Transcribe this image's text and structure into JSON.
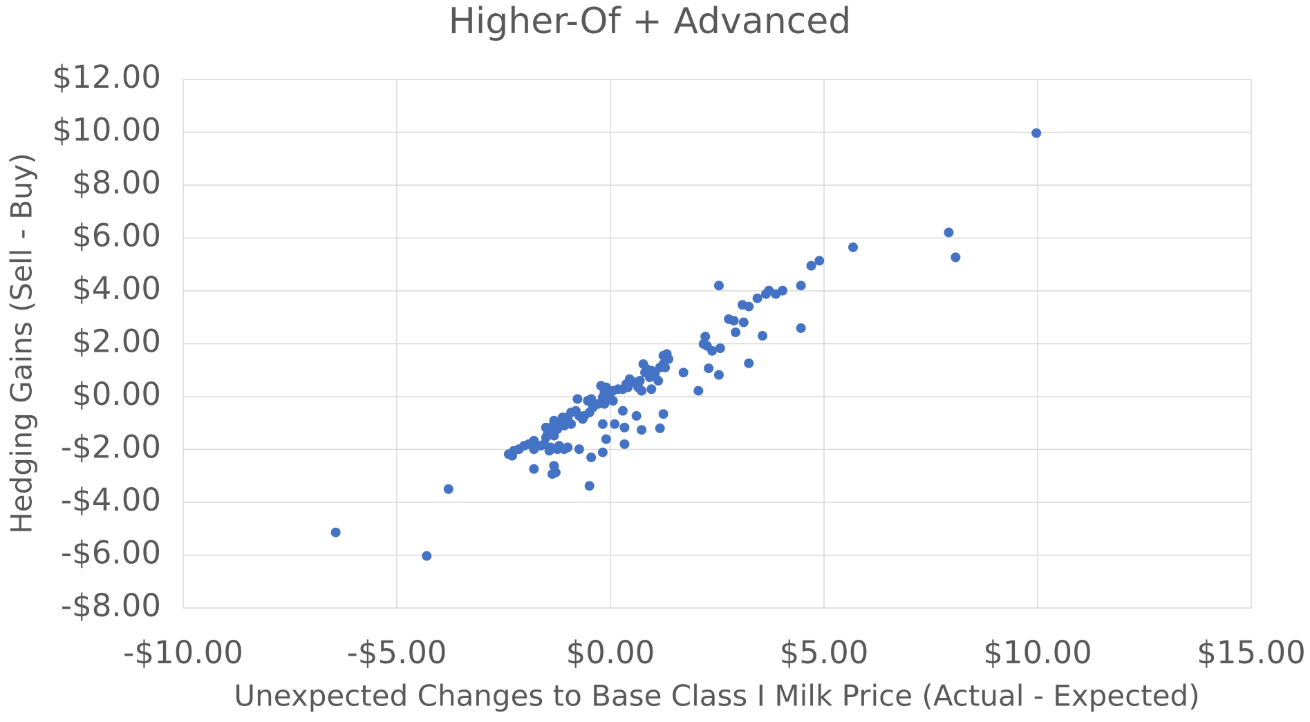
{
  "chart_data": {
    "type": "scatter",
    "title": "Higher-Of + Advanced",
    "x_label": "Unexpected Changes to Base Class I Milk Price (Actual - Expected)",
    "y_label": "Hedging Gains (Sell - Buy)",
    "color": "#4472c4",
    "grid": true,
    "xlim": [
      -10,
      15
    ],
    "ylim": [
      -8,
      12
    ],
    "xticks": [
      {
        "value": -10,
        "label": "-$10.00"
      },
      {
        "value": -5,
        "label": "-$5.00"
      },
      {
        "value": 0,
        "label": "$0.00"
      },
      {
        "value": 5,
        "label": "$5.00"
      },
      {
        "value": 10,
        "label": "$10.00"
      },
      {
        "value": 15,
        "label": "$15.00"
      }
    ],
    "yticks": [
      {
        "value": -8,
        "label": "-$8.00"
      },
      {
        "value": -6,
        "label": "-$6.00"
      },
      {
        "value": -4,
        "label": "-$4.00"
      },
      {
        "value": -2,
        "label": "-$2.00"
      },
      {
        "value": 0,
        "label": "$0.00"
      },
      {
        "value": 2,
        "label": "$2.00"
      },
      {
        "value": 4,
        "label": "$4.00"
      },
      {
        "value": 6,
        "label": "$6.00"
      },
      {
        "value": 8,
        "label": "$8.00"
      },
      {
        "value": 10,
        "label": "$10.00"
      },
      {
        "value": 12,
        "label": "$12.00"
      }
    ],
    "x": [
      9.97,
      7.92,
      8.08,
      5.68,
      4.89,
      4.7,
      2.54,
      4.46,
      4.03,
      3.71,
      3.64,
      3.87,
      3.44,
      3.09,
      3.24,
      2.77,
      2.89,
      3.12,
      2.93,
      3.56,
      4.46,
      2.22,
      2.18,
      2.26,
      2.38,
      2.57,
      3.24,
      2.3,
      2.54,
      1.71,
      2.06,
      1.32,
      1.24,
      1.36,
      1.24,
      1.16,
      1.28,
      0.77,
      0.85,
      0.96,
      0.81,
      1.04,
      0.92,
      1.12,
      0.69,
      0.57,
      0.45,
      0.37,
      0.65,
      0.41,
      0.29,
      0.18,
      0.06,
      0.96,
      0.73,
      -0.22,
      -0.1,
      -0.14,
      -0.02,
      -0.18,
      -0.06,
      0.06,
      -0.14,
      -0.29,
      -0.41,
      -0.53,
      -0.49,
      -0.61,
      -0.65,
      -0.45,
      -0.77,
      -0.81,
      -0.73,
      0.29,
      0.61,
      1.24,
      -0.18,
      0.1,
      0.33,
      0.73,
      1.16,
      0.33,
      -0.1,
      -0.18,
      -0.45,
      -0.49,
      -0.73,
      -0.92,
      -1.0,
      -0.92,
      -1.12,
      -1.2,
      -1.08,
      -1.32,
      -1.24,
      -1.4,
      -1.51,
      -1.47,
      -1.32,
      -1.2,
      -1.08,
      -1.0,
      -1.24,
      -1.4,
      -1.51,
      -1.55,
      -1.43,
      -1.63,
      -1.79,
      -1.91,
      -2.02,
      -2.14,
      -1.79,
      -2.26,
      -2.38,
      -2.3,
      -1.79,
      -1.32,
      -1.36,
      -1.28,
      -3.79,
      -4.3,
      -6.43
    ],
    "values": [
      9.97,
      6.21,
      5.27,
      5.65,
      5.14,
      4.95,
      4.2,
      4.2,
      4.01,
      4.01,
      3.88,
      3.88,
      3.72,
      3.47,
      3.41,
      2.93,
      2.87,
      2.81,
      2.43,
      2.3,
      2.59,
      2.27,
      1.99,
      1.92,
      1.73,
      1.83,
      1.26,
      1.07,
      0.82,
      0.91,
      0.22,
      1.61,
      1.55,
      1.42,
      1.23,
      1.1,
      1.1,
      1.23,
      1.04,
      0.98,
      0.91,
      0.85,
      0.73,
      0.6,
      0.6,
      0.54,
      0.66,
      0.47,
      0.35,
      0.35,
      0.28,
      0.28,
      0.22,
      0.28,
      0.22,
      0.41,
      0.35,
      0.16,
      0.09,
      -0.03,
      -0.09,
      -0.16,
      -0.28,
      -0.28,
      -0.41,
      -0.16,
      -0.6,
      -0.73,
      -0.85,
      -0.09,
      -0.09,
      -0.54,
      -0.73,
      -0.54,
      -0.73,
      -0.66,
      -1.04,
      -1.04,
      -1.17,
      -1.26,
      -1.2,
      -1.8,
      -1.61,
      -2.11,
      -2.3,
      -3.38,
      -1.99,
      -0.6,
      -0.79,
      -1.04,
      -0.79,
      -0.98,
      -1.1,
      -0.91,
      -1.23,
      -1.17,
      -1.17,
      -1.42,
      -1.48,
      -1.86,
      -1.99,
      -1.92,
      -1.99,
      -1.92,
      -1.55,
      -1.8,
      -2.05,
      -1.86,
      -1.67,
      -1.8,
      -1.86,
      -1.99,
      -1.99,
      -2.05,
      -2.18,
      -2.24,
      -2.74,
      -2.62,
      -2.93,
      -2.87,
      -3.5,
      -6.03,
      -5.14
    ]
  }
}
